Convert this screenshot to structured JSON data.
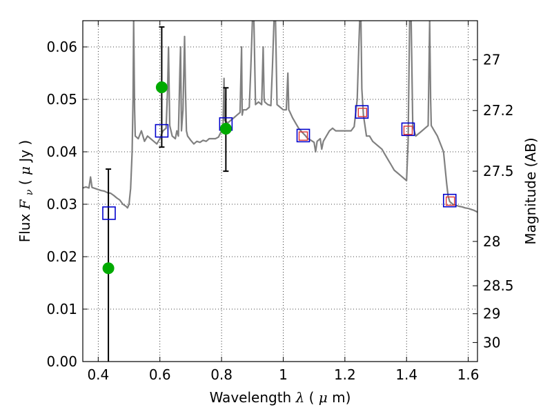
{
  "chart_data": {
    "type": "scatter",
    "title": "",
    "xlabel": {
      "prefix": "Wavelength ",
      "symbol": "λ",
      "units_open": " (",
      "units_mu": "μ",
      "units_rest": "m)"
    },
    "ylabel": {
      "prefix": "Flux ",
      "symbol": "F",
      "subscript": "ν",
      "units_open": " ( ",
      "units_mu": "μ",
      "units_rest": "Jy )"
    },
    "y2label": "Magnitude (AB)",
    "xlim": [
      0.35,
      1.63
    ],
    "ylim": [
      0.0,
      0.065
    ],
    "grid": true,
    "x_ticks": [
      {
        "value": 0.4,
        "label": "0.4"
      },
      {
        "value": 0.6,
        "label": "0.6"
      },
      {
        "value": 0.8,
        "label": "0.8"
      },
      {
        "value": 1.0,
        "label": "1"
      },
      {
        "value": 1.2,
        "label": "1.2"
      },
      {
        "value": 1.4,
        "label": "1.4"
      },
      {
        "value": 1.6,
        "label": "1.6"
      }
    ],
    "y_ticks": [
      {
        "value": 0.0,
        "label": "0.00"
      },
      {
        "value": 0.01,
        "label": "0.01"
      },
      {
        "value": 0.02,
        "label": "0.02"
      },
      {
        "value": 0.03,
        "label": "0.03"
      },
      {
        "value": 0.04,
        "label": "0.04"
      },
      {
        "value": 0.05,
        "label": "0.05"
      },
      {
        "value": 0.06,
        "label": "0.06"
      }
    ],
    "y2_ticks": [
      {
        "mag": 27.0,
        "label": "27"
      },
      {
        "mag": 27.2,
        "label": "27.2"
      },
      {
        "mag": 27.5,
        "label": "27.5"
      },
      {
        "mag": 28.0,
        "label": "28"
      },
      {
        "mag": 28.5,
        "label": "28.5"
      },
      {
        "mag": 29.0,
        "label": "29"
      },
      {
        "mag": 30.0,
        "label": "30"
      }
    ],
    "series": [
      {
        "name": "model-spectrum",
        "kind": "line",
        "color": "#808080",
        "points": [
          [
            0.35,
            0.0331
          ],
          [
            0.36,
            0.0333
          ],
          [
            0.37,
            0.0331
          ],
          [
            0.375,
            0.0352
          ],
          [
            0.38,
            0.0332
          ],
          [
            0.39,
            0.033
          ],
          [
            0.4,
            0.0328
          ],
          [
            0.41,
            0.0326
          ],
          [
            0.42,
            0.0325
          ],
          [
            0.43,
            0.0322
          ],
          [
            0.44,
            0.0321
          ],
          [
            0.45,
            0.0317
          ],
          [
            0.46,
            0.0312
          ],
          [
            0.47,
            0.0308
          ],
          [
            0.48,
            0.03
          ],
          [
            0.49,
            0.0296
          ],
          [
            0.495,
            0.0293
          ],
          [
            0.5,
            0.03
          ],
          [
            0.505,
            0.033
          ],
          [
            0.51,
            0.04
          ],
          [
            0.513,
            0.05
          ],
          [
            0.515,
            0.065
          ],
          [
            0.518,
            0.048
          ],
          [
            0.52,
            0.043
          ],
          [
            0.53,
            0.0425
          ],
          [
            0.54,
            0.044
          ],
          [
            0.55,
            0.042
          ],
          [
            0.56,
            0.043
          ],
          [
            0.57,
            0.0425
          ],
          [
            0.58,
            0.042
          ],
          [
            0.59,
            0.0415
          ],
          [
            0.6,
            0.0425
          ],
          [
            0.61,
            0.044
          ],
          [
            0.62,
            0.0445
          ],
          [
            0.625,
            0.052
          ],
          [
            0.628,
            0.06
          ],
          [
            0.632,
            0.045
          ],
          [
            0.64,
            0.043
          ],
          [
            0.65,
            0.0425
          ],
          [
            0.655,
            0.044
          ],
          [
            0.66,
            0.043
          ],
          [
            0.665,
            0.056
          ],
          [
            0.667,
            0.06
          ],
          [
            0.67,
            0.044
          ],
          [
            0.675,
            0.048
          ],
          [
            0.68,
            0.062
          ],
          [
            0.683,
            0.052
          ],
          [
            0.686,
            0.044
          ],
          [
            0.69,
            0.043
          ],
          [
            0.7,
            0.0422
          ],
          [
            0.71,
            0.0415
          ],
          [
            0.72,
            0.042
          ],
          [
            0.73,
            0.0418
          ],
          [
            0.74,
            0.0422
          ],
          [
            0.75,
            0.042
          ],
          [
            0.76,
            0.0425
          ],
          [
            0.77,
            0.0425
          ],
          [
            0.78,
            0.0425
          ],
          [
            0.79,
            0.0428
          ],
          [
            0.8,
            0.044
          ],
          [
            0.805,
            0.045
          ],
          [
            0.808,
            0.054
          ],
          [
            0.81,
            0.046
          ],
          [
            0.82,
            0.0455
          ],
          [
            0.83,
            0.046
          ],
          [
            0.84,
            0.0465
          ],
          [
            0.85,
            0.047
          ],
          [
            0.86,
            0.0475
          ],
          [
            0.865,
            0.06
          ],
          [
            0.867,
            0.047
          ],
          [
            0.87,
            0.048
          ],
          [
            0.88,
            0.048
          ],
          [
            0.89,
            0.0485
          ],
          [
            0.895,
            0.056
          ],
          [
            0.9,
            0.065
          ],
          [
            0.905,
            0.065
          ],
          [
            0.91,
            0.049
          ],
          [
            0.92,
            0.0495
          ],
          [
            0.93,
            0.049
          ],
          [
            0.935,
            0.06
          ],
          [
            0.938,
            0.05
          ],
          [
            0.94,
            0.0495
          ],
          [
            0.95,
            0.049
          ],
          [
            0.96,
            0.0488
          ],
          [
            0.965,
            0.056
          ],
          [
            0.97,
            0.065
          ],
          [
            0.975,
            0.065
          ],
          [
            0.98,
            0.049
          ],
          [
            0.99,
            0.0485
          ],
          [
            1.0,
            0.048
          ],
          [
            1.01,
            0.048
          ],
          [
            1.015,
            0.055
          ],
          [
            1.018,
            0.048
          ],
          [
            1.02,
            0.0478
          ],
          [
            1.03,
            0.0465
          ],
          [
            1.04,
            0.0455
          ],
          [
            1.05,
            0.0445
          ],
          [
            1.06,
            0.0438
          ],
          [
            1.07,
            0.0432
          ],
          [
            1.08,
            0.0425
          ],
          [
            1.09,
            0.0422
          ],
          [
            1.1,
            0.0418
          ],
          [
            1.105,
            0.04
          ],
          [
            1.11,
            0.042
          ],
          [
            1.12,
            0.0425
          ],
          [
            1.125,
            0.0405
          ],
          [
            1.13,
            0.042
          ],
          [
            1.14,
            0.043
          ],
          [
            1.15,
            0.044
          ],
          [
            1.16,
            0.0445
          ],
          [
            1.17,
            0.044
          ],
          [
            1.18,
            0.044
          ],
          [
            1.19,
            0.044
          ],
          [
            1.2,
            0.044
          ],
          [
            1.21,
            0.044
          ],
          [
            1.22,
            0.044
          ],
          [
            1.23,
            0.0448
          ],
          [
            1.24,
            0.05
          ],
          [
            1.245,
            0.06
          ],
          [
            1.248,
            0.065
          ],
          [
            1.252,
            0.065
          ],
          [
            1.255,
            0.052
          ],
          [
            1.26,
            0.047
          ],
          [
            1.27,
            0.043
          ],
          [
            1.28,
            0.043
          ],
          [
            1.29,
            0.042
          ],
          [
            1.3,
            0.0415
          ],
          [
            1.31,
            0.041
          ],
          [
            1.32,
            0.0405
          ],
          [
            1.33,
            0.0395
          ],
          [
            1.34,
            0.0385
          ],
          [
            1.35,
            0.0375
          ],
          [
            1.36,
            0.0365
          ],
          [
            1.37,
            0.036
          ],
          [
            1.38,
            0.0355
          ],
          [
            1.39,
            0.035
          ],
          [
            1.4,
            0.0345
          ],
          [
            1.405,
            0.042
          ],
          [
            1.408,
            0.056
          ],
          [
            1.41,
            0.065
          ],
          [
            1.415,
            0.065
          ],
          [
            1.42,
            0.045
          ],
          [
            1.43,
            0.043
          ],
          [
            1.44,
            0.0435
          ],
          [
            1.45,
            0.044
          ],
          [
            1.46,
            0.0445
          ],
          [
            1.47,
            0.045
          ],
          [
            1.475,
            0.065
          ],
          [
            1.478,
            0.05
          ],
          [
            1.48,
            0.045
          ],
          [
            1.49,
            0.044
          ],
          [
            1.5,
            0.043
          ],
          [
            1.51,
            0.0415
          ],
          [
            1.52,
            0.04
          ],
          [
            1.53,
            0.034
          ],
          [
            1.535,
            0.0315
          ],
          [
            1.54,
            0.0305
          ],
          [
            1.55,
            0.03
          ],
          [
            1.56,
            0.0298
          ],
          [
            1.57,
            0.0296
          ],
          [
            1.58,
            0.0295
          ],
          [
            1.59,
            0.0293
          ],
          [
            1.6,
            0.0292
          ],
          [
            1.61,
            0.029
          ],
          [
            1.62,
            0.0288
          ],
          [
            1.63,
            0.0285
          ]
        ]
      },
      {
        "name": "observed-photometry",
        "kind": "circle",
        "color": "#00aa00",
        "points": [
          {
            "x": 0.433,
            "y": 0.0178,
            "err_low": 0.0,
            "err_high": 0.0367
          },
          {
            "x": 0.606,
            "y": 0.0523,
            "err_low": 0.0409,
            "err_high": 0.0638
          },
          {
            "x": 0.814,
            "y": 0.0444,
            "err_low": 0.0363,
            "err_high": 0.0522
          }
        ]
      },
      {
        "name": "model-bandpass-flux",
        "kind": "open-square",
        "color": "#0000cc",
        "points": [
          {
            "x": 0.435,
            "y": 0.0283
          },
          {
            "x": 0.606,
            "y": 0.044
          },
          {
            "x": 0.814,
            "y": 0.0453
          },
          {
            "x": 1.065,
            "y": 0.0431
          },
          {
            "x": 1.255,
            "y": 0.0476
          },
          {
            "x": 1.405,
            "y": 0.0443
          },
          {
            "x": 1.54,
            "y": 0.0307
          }
        ]
      },
      {
        "name": "model-bandpass-flux-ir",
        "kind": "open-square-small",
        "color": "#dd3333",
        "points": [
          {
            "x": 1.065,
            "y": 0.043
          },
          {
            "x": 1.257,
            "y": 0.0475
          },
          {
            "x": 1.405,
            "y": 0.0441
          },
          {
            "x": 1.542,
            "y": 0.0306
          }
        ]
      }
    ]
  }
}
